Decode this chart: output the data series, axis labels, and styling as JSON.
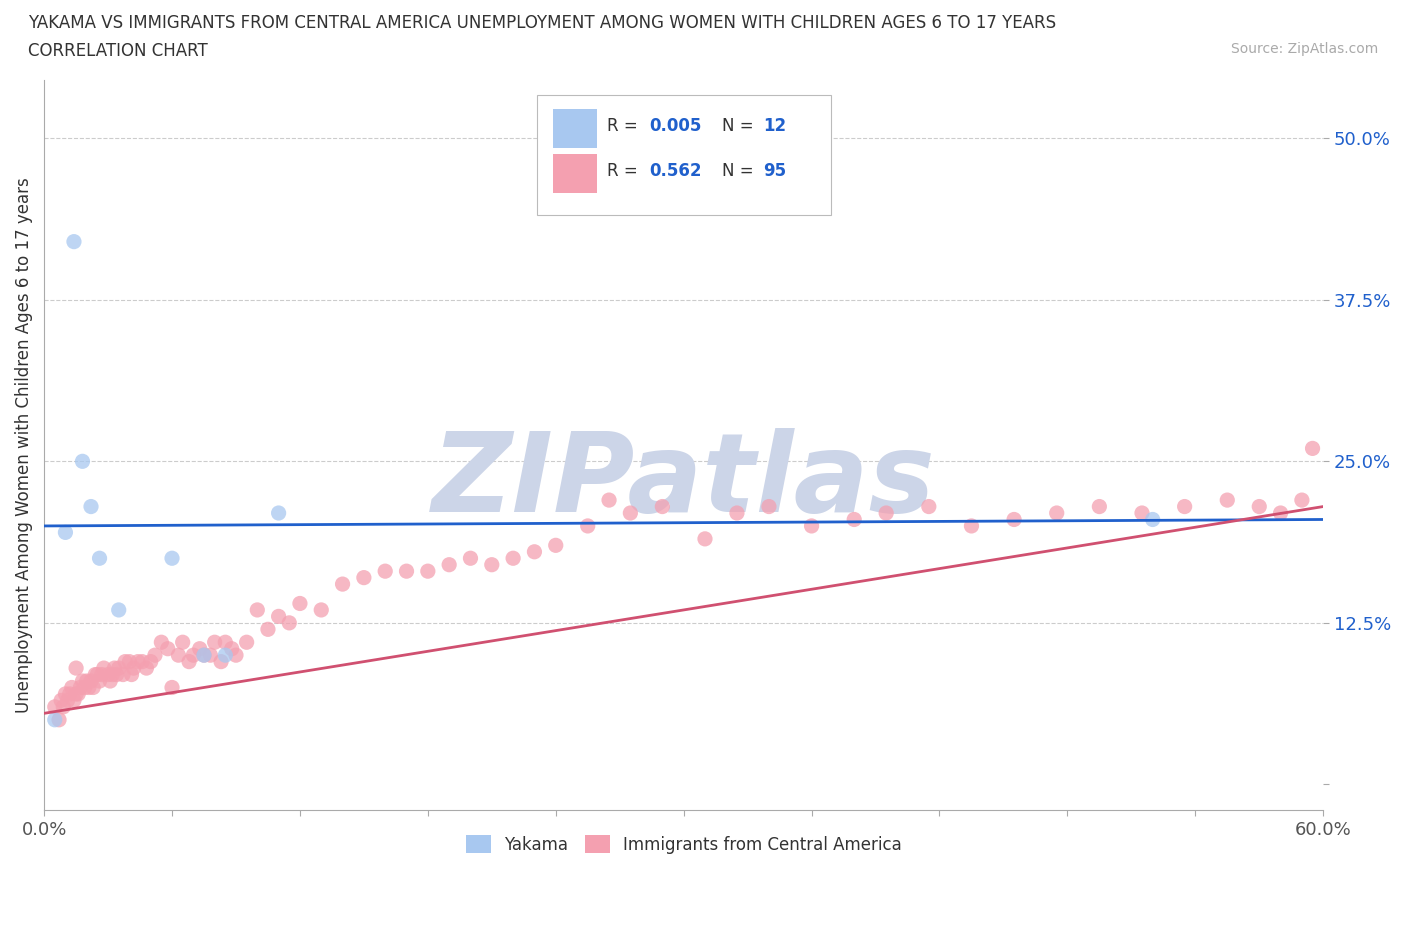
{
  "title_line1": "YAKAMA VS IMMIGRANTS FROM CENTRAL AMERICA UNEMPLOYMENT AMONG WOMEN WITH CHILDREN AGES 6 TO 17 YEARS",
  "title_line2": "CORRELATION CHART",
  "source_text": "Source: ZipAtlas.com",
  "ylabel": "Unemployment Among Women with Children Ages 6 to 17 years",
  "xlim": [
    0.0,
    0.6
  ],
  "ylim": [
    -0.02,
    0.545
  ],
  "xticks": [
    0.0,
    0.06,
    0.12,
    0.18,
    0.24,
    0.3,
    0.36,
    0.42,
    0.48,
    0.54,
    0.6
  ],
  "xticklabels": [
    "0.0%",
    "",
    "",
    "",
    "",
    "",
    "",
    "",
    "",
    "",
    "60.0%"
  ],
  "ytick_positions": [
    0.0,
    0.125,
    0.25,
    0.375,
    0.5
  ],
  "yticklabels": [
    "",
    "12.5%",
    "25.0%",
    "37.5%",
    "50.0%"
  ],
  "gridline_color": "#cccccc",
  "background_color": "#ffffff",
  "yakama_color": "#a8c8f0",
  "immigrant_color": "#f4a0b0",
  "watermark_text": "ZIPatlas",
  "watermark_color": "#ccd5e8",
  "yakama_x": [
    0.005,
    0.01,
    0.014,
    0.018,
    0.022,
    0.026,
    0.035,
    0.06,
    0.075,
    0.085,
    0.11,
    0.52
  ],
  "yakama_y": [
    0.05,
    0.195,
    0.42,
    0.25,
    0.215,
    0.175,
    0.135,
    0.175,
    0.1,
    0.1,
    0.21,
    0.205
  ],
  "immigrant_x": [
    0.005,
    0.007,
    0.008,
    0.009,
    0.01,
    0.011,
    0.012,
    0.013,
    0.014,
    0.015,
    0.015,
    0.016,
    0.017,
    0.018,
    0.019,
    0.02,
    0.021,
    0.022,
    0.023,
    0.024,
    0.025,
    0.026,
    0.027,
    0.028,
    0.03,
    0.031,
    0.032,
    0.033,
    0.034,
    0.035,
    0.037,
    0.038,
    0.04,
    0.041,
    0.042,
    0.044,
    0.046,
    0.048,
    0.05,
    0.052,
    0.055,
    0.058,
    0.06,
    0.063,
    0.065,
    0.068,
    0.07,
    0.073,
    0.075,
    0.078,
    0.08,
    0.083,
    0.085,
    0.088,
    0.09,
    0.095,
    0.1,
    0.105,
    0.11,
    0.115,
    0.12,
    0.13,
    0.14,
    0.15,
    0.16,
    0.17,
    0.18,
    0.19,
    0.2,
    0.21,
    0.22,
    0.23,
    0.24,
    0.255,
    0.265,
    0.275,
    0.29,
    0.31,
    0.325,
    0.34,
    0.36,
    0.38,
    0.395,
    0.415,
    0.435,
    0.455,
    0.475,
    0.495,
    0.515,
    0.535,
    0.555,
    0.57,
    0.58,
    0.59,
    0.595
  ],
  "immigrant_y": [
    0.06,
    0.05,
    0.065,
    0.06,
    0.07,
    0.065,
    0.07,
    0.075,
    0.065,
    0.07,
    0.09,
    0.07,
    0.075,
    0.08,
    0.075,
    0.08,
    0.075,
    0.08,
    0.075,
    0.085,
    0.085,
    0.08,
    0.085,
    0.09,
    0.085,
    0.08,
    0.085,
    0.09,
    0.085,
    0.09,
    0.085,
    0.095,
    0.095,
    0.085,
    0.09,
    0.095,
    0.095,
    0.09,
    0.095,
    0.1,
    0.11,
    0.105,
    0.075,
    0.1,
    0.11,
    0.095,
    0.1,
    0.105,
    0.1,
    0.1,
    0.11,
    0.095,
    0.11,
    0.105,
    0.1,
    0.11,
    0.135,
    0.12,
    0.13,
    0.125,
    0.14,
    0.135,
    0.155,
    0.16,
    0.165,
    0.165,
    0.165,
    0.17,
    0.175,
    0.17,
    0.175,
    0.18,
    0.185,
    0.2,
    0.22,
    0.21,
    0.215,
    0.19,
    0.21,
    0.215,
    0.2,
    0.205,
    0.21,
    0.215,
    0.2,
    0.205,
    0.21,
    0.215,
    0.21,
    0.215,
    0.22,
    0.215,
    0.21,
    0.22,
    0.26
  ],
  "yakama_line_y0": 0.2,
  "yakama_line_y1": 0.205,
  "immigrant_line_y0": 0.055,
  "immigrant_line_y1": 0.215
}
